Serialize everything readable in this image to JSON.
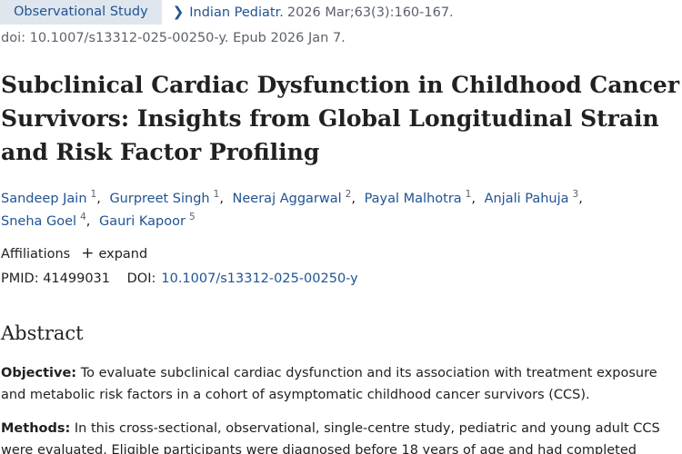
{
  "header": {
    "article_type": "Observational Study",
    "journal": "Indian Pediatr.",
    "citation": "2026 Mar;63(3):160-167.",
    "doi_line": "doi: 10.1007/s13312-025-00250-y. Epub 2026 Jan 7."
  },
  "title": "Subclinical Cardiac Dysfunction in Childhood Cancer Survivors: Insights from Global Longitudinal Strain and Risk Factor Profiling",
  "authors": [
    {
      "name": "Sandeep Jain",
      "aff": "1"
    },
    {
      "name": "Gurpreet Singh",
      "aff": "1"
    },
    {
      "name": "Neeraj Aggarwal",
      "aff": "2"
    },
    {
      "name": "Payal Malhotra",
      "aff": "1"
    },
    {
      "name": "Anjali Pahuja",
      "aff": "3"
    },
    {
      "name": "Sneha Goel",
      "aff": "4"
    },
    {
      "name": "Gauri Kapoor",
      "aff": "5"
    }
  ],
  "affiliations": {
    "label": "Affiliations",
    "expand_icon": "plus-icon",
    "expand_label": "expand"
  },
  "identifiers": {
    "pmid_label": "PMID:",
    "pmid": "41499031",
    "doi_label": "DOI:",
    "doi": "10.1007/s13312-025-00250-y"
  },
  "abstract": {
    "heading": "Abstract",
    "objective_label": "Objective:",
    "objective_text": "To evaluate subclinical cardiac dysfunction and its association with treatment exposure and metabolic risk factors in a cohort of asymptomatic childhood cancer survivors (CCS).",
    "methods_label": "Methods:",
    "methods_text": "In this cross-sectional, observational, single-centre study, pediatric and young adult CCS were evaluated. Eligible participants were diagnosed before 18 years of age and had completed"
  },
  "colors": {
    "link": "#205493",
    "badge_bg": "#dfe6ee",
    "muted": "#5b616b",
    "text": "#212121"
  }
}
